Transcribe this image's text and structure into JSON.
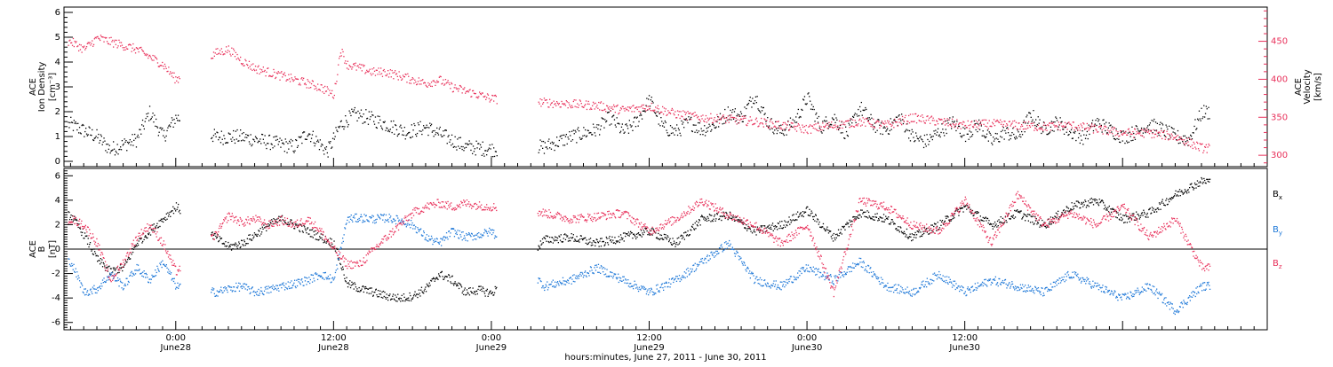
{
  "chart_data": [
    {
      "type": "scatter",
      "panel": "top",
      "ylabel_line1": "ACE",
      "ylabel_line2": "Ion Density",
      "ylabel_unit": "[cm⁻³]",
      "y2label_line1": "ACE",
      "y2label_line2": "Velocity",
      "y2label_unit": "[km/s]",
      "ylim": [
        0,
        6
      ],
      "y2lim": [
        285,
        495
      ],
      "yticks": [
        "0",
        "1",
        "2",
        "3",
        "4",
        "5",
        "6"
      ],
      "y2ticks": [
        "300",
        "350",
        "400",
        "450"
      ],
      "xlim_hours": [
        -8.5,
        83
      ],
      "data_gaps_hours": [
        [
          0.3,
          2.6
        ],
        [
          24.4,
          27.5
        ],
        [
          78.6,
          83
        ]
      ],
      "series": [
        {
          "axis": "left",
          "color": "#000000",
          "x": [
            -8,
            -6,
            -5,
            -4,
            -3,
            -2,
            -1,
            0,
            3,
            5,
            7,
            9,
            10,
            11.5,
            12.5,
            13.5,
            14.5,
            16,
            17.5,
            19,
            20.5,
            22,
            24,
            28,
            30,
            32,
            33,
            34,
            35,
            36,
            37,
            38,
            39,
            40,
            41,
            42,
            43,
            44,
            45,
            46,
            47,
            48,
            49,
            50,
            51,
            52,
            53,
            54,
            55,
            56,
            57,
            58,
            59,
            60,
            61,
            62,
            63,
            64,
            65,
            66,
            67,
            68,
            69,
            70,
            71,
            72,
            73,
            74,
            75,
            76,
            77,
            78
          ],
          "values": [
            1.5,
            1.0,
            0.5,
            0.7,
            0.9,
            2.0,
            1.0,
            1.8,
            1.0,
            1.0,
            0.8,
            0.6,
            1.2,
            0.4,
            1.5,
            1.9,
            1.8,
            1.5,
            1.2,
            1.4,
            1.0,
            0.6,
            0.5,
            0.6,
            1.0,
            1.3,
            1.8,
            1.2,
            1.6,
            2.5,
            1.4,
            1.2,
            1.6,
            1.3,
            1.5,
            2.0,
            1.8,
            2.7,
            1.6,
            1.2,
            1.6,
            2.6,
            1.4,
            1.8,
            1.1,
            2.2,
            1.5,
            1.3,
            1.8,
            1.0,
            0.8,
            1.2,
            1.6,
            1.1,
            1.5,
            0.8,
            1.2,
            1.0,
            1.9,
            1.3,
            1.6,
            1.2,
            1.0,
            1.6,
            1.3,
            1.0,
            1.2,
            1.5,
            1.3,
            1.0,
            0.9,
            2.0
          ]
        },
        {
          "axis": "right",
          "color": "#e8305a",
          "x": [
            -8,
            -7,
            -6,
            -5,
            -4,
            -3,
            -2,
            -1,
            0,
            3,
            4,
            5,
            6,
            7,
            8,
            9,
            10,
            11,
            12,
            12.5,
            13,
            14,
            15,
            16,
            17,
            18,
            19,
            20,
            21,
            22,
            23,
            24,
            28,
            30,
            32,
            34,
            36,
            38,
            40,
            42,
            44,
            46,
            48,
            50,
            52,
            54,
            56,
            58,
            60,
            62,
            64,
            66,
            68,
            70,
            72,
            74,
            76,
            78
          ],
          "values": [
            450,
            440,
            455,
            450,
            445,
            440,
            430,
            420,
            400,
            435,
            440,
            425,
            415,
            410,
            405,
            400,
            395,
            390,
            380,
            440,
            420,
            415,
            410,
            410,
            405,
            400,
            395,
            400,
            390,
            385,
            380,
            375,
            370,
            368,
            366,
            360,
            365,
            355,
            350,
            348,
            345,
            340,
            335,
            340,
            345,
            340,
            350,
            345,
            340,
            342,
            340,
            338,
            340,
            335,
            330,
            330,
            325,
            310
          ]
        }
      ]
    },
    {
      "type": "scatter",
      "panel": "bottom",
      "ylabel_line1": "ACE",
      "ylabel_line2": "B",
      "ylabel_unit": "[nT]",
      "ylim": [
        -6.6,
        6.6
      ],
      "yticks": [
        "-6",
        "-4",
        "-2",
        "0",
        "2",
        "4",
        "6"
      ],
      "zero_line": true,
      "series": [
        {
          "name": "B",
          "sub": "x",
          "color": "#000000",
          "x": [
            -8,
            -7,
            -6,
            -5,
            -4,
            -3,
            -2,
            -1,
            0,
            3,
            4,
            5,
            6,
            7,
            8,
            9,
            10,
            11,
            12,
            13,
            14,
            15,
            16,
            17,
            18,
            19,
            20,
            21,
            22,
            23,
            24,
            28,
            30,
            32,
            34,
            36,
            38,
            40,
            42,
            44,
            46,
            48,
            50,
            52,
            54,
            56,
            58,
            60,
            62,
            64,
            66,
            68,
            70,
            72,
            74,
            76,
            78
          ],
          "values": [
            2.8,
            1.2,
            -0.8,
            -1.8,
            -1.5,
            0.5,
            1.5,
            2.5,
            3.5,
            1.0,
            0.2,
            0.5,
            1.2,
            2.0,
            2.5,
            2.0,
            1.5,
            1.0,
            0.5,
            -2.8,
            -3.2,
            -3.5,
            -3.8,
            -4.0,
            -3.8,
            -3.2,
            -2.0,
            -2.5,
            -3.5,
            -3.3,
            -3.6,
            0.8,
            1.0,
            0.5,
            1.0,
            1.5,
            0.5,
            2.5,
            2.8,
            1.5,
            2.0,
            3.2,
            1.0,
            3.0,
            2.5,
            1.0,
            2.0,
            3.5,
            2.0,
            3.0,
            2.0,
            3.5,
            4.0,
            2.5,
            3.0,
            4.5,
            5.6
          ]
        },
        {
          "name": "B",
          "sub": "y",
          "color": "#1e78d8",
          "x": [
            -8,
            -7,
            -6,
            -5,
            -4,
            -3,
            -2,
            -1,
            0,
            3,
            4,
            5,
            6,
            7,
            8,
            9,
            10,
            11,
            12,
            13,
            14,
            15,
            16,
            17,
            18,
            19,
            20,
            21,
            22,
            23,
            24,
            28,
            30,
            32,
            34,
            36,
            38,
            40,
            42,
            44,
            46,
            48,
            50,
            52,
            54,
            56,
            58,
            60,
            62,
            64,
            66,
            68,
            70,
            72,
            74,
            76,
            78
          ],
          "values": [
            -1.0,
            -3.5,
            -3.2,
            -2.0,
            -3.0,
            -1.5,
            -2.5,
            -1.0,
            -3.0,
            -3.5,
            -3.2,
            -3.0,
            -3.5,
            -3.3,
            -3.0,
            -2.8,
            -2.5,
            -2.0,
            -2.5,
            2.5,
            2.6,
            2.5,
            2.6,
            2.4,
            2.0,
            1.0,
            0.5,
            1.5,
            1.0,
            1.2,
            1.5,
            -3.0,
            -2.5,
            -1.5,
            -2.5,
            -3.5,
            -2.5,
            -1.0,
            0.5,
            -2.5,
            -3.0,
            -1.5,
            -2.5,
            -1.0,
            -3.0,
            -3.5,
            -2.0,
            -3.5,
            -2.5,
            -3.0,
            -3.5,
            -2.0,
            -3.0,
            -4.0,
            -3.0,
            -5.0,
            -3.0
          ]
        },
        {
          "name": "B",
          "sub": "z",
          "color": "#e8305a",
          "x": [
            -8,
            -7,
            -6,
            -5,
            -4,
            -3,
            -2,
            -1,
            0,
            3,
            4,
            5,
            6,
            7,
            8,
            9,
            10,
            11,
            12,
            13,
            14,
            15,
            16,
            17,
            18,
            19,
            20,
            21,
            22,
            23,
            24,
            28,
            30,
            32,
            34,
            36,
            38,
            40,
            42,
            44,
            46,
            48,
            50,
            52,
            54,
            56,
            58,
            60,
            62,
            64,
            66,
            68,
            70,
            72,
            74,
            76,
            78
          ],
          "values": [
            2.5,
            2.0,
            0.5,
            -2.5,
            -1.0,
            1.0,
            2.0,
            0.5,
            -1.8,
            1.2,
            2.8,
            2.2,
            2.5,
            2.0,
            2.4,
            2.0,
            2.5,
            1.5,
            0.0,
            -1.2,
            -1.2,
            0.0,
            1.0,
            2.0,
            3.0,
            3.5,
            3.8,
            3.5,
            3.8,
            3.6,
            3.5,
            3.0,
            2.5,
            2.7,
            3.0,
            1.5,
            2.5,
            4.0,
            2.8,
            2.0,
            0.5,
            2.0,
            -3.5,
            4.0,
            3.5,
            2.0,
            1.5,
            4.0,
            0.5,
            4.5,
            2.0,
            3.0,
            2.0,
            3.5,
            1.0,
            2.5,
            -1.5
          ]
        }
      ]
    }
  ],
  "x_axis": {
    "tick_labels": [
      {
        "time": "0:00",
        "date": "June28"
      },
      {
        "time": "12:00",
        "date": "June28"
      },
      {
        "time": "0:00",
        "date": "June29"
      },
      {
        "time": "12:00",
        "date": "June29"
      },
      {
        "time": "0:00",
        "date": "June30"
      },
      {
        "time": "12:00",
        "date": "June30"
      }
    ],
    "tick_hours": [
      0,
      12,
      24,
      36,
      48,
      60
    ],
    "title": "hours:minutes, June 27, 2011 - June 30, 2011"
  },
  "colors": {
    "density": "#000000",
    "velocity": "#e8305a",
    "bx": "#000000",
    "by": "#1e78d8",
    "bz": "#e8305a"
  }
}
